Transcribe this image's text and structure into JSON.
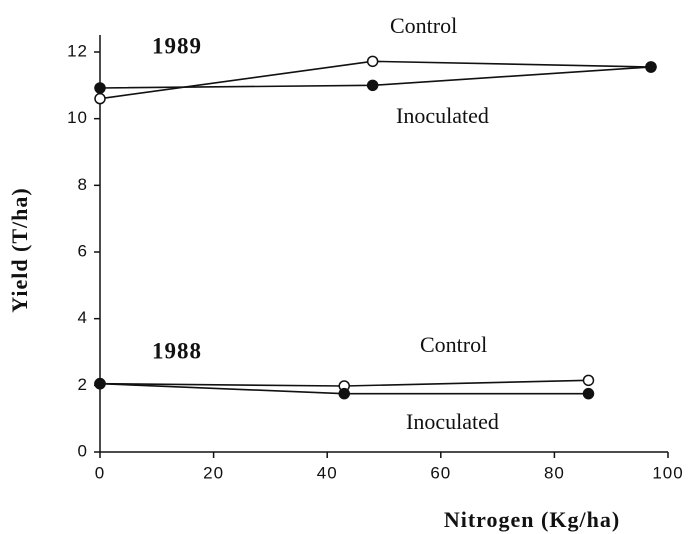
{
  "chart_data": {
    "type": "line",
    "xlabel": "Nitrogen  (Kg/ha)",
    "ylabel": "Yield  (T/ha)",
    "xlim": [
      0,
      100
    ],
    "xticks": [
      0,
      20,
      40,
      60,
      80,
      100
    ],
    "ylim": [
      0,
      12
    ],
    "yticks": [
      0,
      2,
      4,
      6,
      8,
      10,
      12
    ],
    "annotations": [
      "1989",
      "1988"
    ],
    "series": [
      {
        "name": "Control",
        "color": "#111111",
        "marker": "open",
        "x": [
          0,
          48,
          97
        ],
        "values": [
          10.6,
          11.72,
          11.55
        ]
      },
      {
        "name": "Inoculated",
        "color": "#111111",
        "marker": "filled",
        "x": [
          0,
          48,
          97
        ],
        "values": [
          10.92,
          11.0,
          11.55
        ]
      },
      {
        "name": "Control",
        "color": "#111111",
        "marker": "open",
        "x": [
          0,
          43,
          86
        ],
        "values": [
          2.05,
          1.98,
          2.15
        ]
      },
      {
        "name": "Inoculated",
        "color": "#111111",
        "marker": "filled",
        "x": [
          0,
          43,
          86
        ],
        "values": [
          2.05,
          1.75,
          1.75
        ]
      }
    ]
  }
}
